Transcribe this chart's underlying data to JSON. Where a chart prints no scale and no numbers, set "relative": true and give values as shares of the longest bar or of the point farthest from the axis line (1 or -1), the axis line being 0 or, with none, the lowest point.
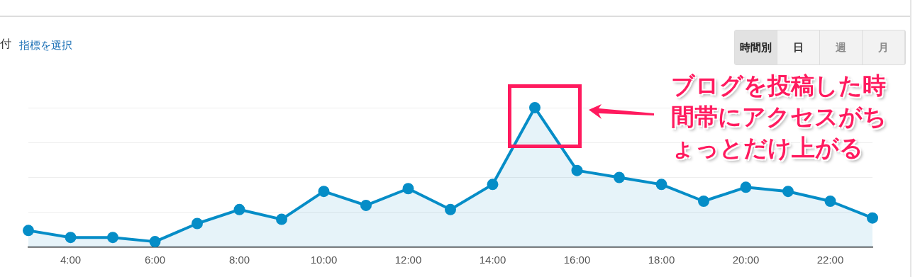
{
  "chart_data": {
    "type": "area",
    "relative": true,
    "categories": [
      null,
      "4:00",
      null,
      "6:00",
      null,
      "8:00",
      null,
      "10:00",
      null,
      "12:00",
      null,
      "14:00",
      null,
      "16:00",
      null,
      "18:00",
      null,
      "20:00",
      null,
      "22:00",
      null
    ],
    "series": [
      {
        "color": "#058dc7",
        "values": [
          0.12,
          0.07,
          0.07,
          0.04,
          0.17,
          0.27,
          0.2,
          0.4,
          0.3,
          0.42,
          0.27,
          0.45,
          1,
          0.55,
          0.5,
          0.45,
          0.33,
          0.43,
          0.4,
          0.33,
          0.21
        ]
      }
    ],
    "grid": "y",
    "tick_labels": "x",
    "marker": "circle",
    "legend": false,
    "annotations": [
      "付",
      "指標を選択",
      "時間別",
      "日",
      "週",
      "月",
      "ブログを投稿した時間帯にアクセスがちょっとだけ上がる"
    ]
  }
}
